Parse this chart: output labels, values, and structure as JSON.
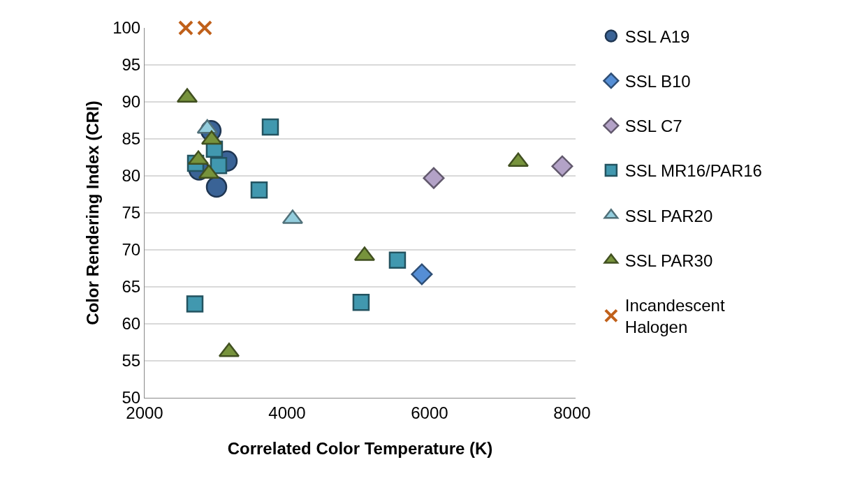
{
  "chart_data": {
    "type": "scatter",
    "xlabel": "Correlated Color Temperature (K)",
    "ylabel": "Color Rendering Index (CRI)",
    "xlim": [
      2000,
      8050
    ],
    "xticks": [
      2000,
      4000,
      6000,
      8000
    ],
    "ylim": [
      50,
      100
    ],
    "yticks": [
      50,
      55,
      60,
      65,
      70,
      75,
      80,
      85,
      90,
      95,
      100
    ],
    "grid": "y",
    "legend": "right",
    "series": [
      {
        "name": "SSL A19",
        "color": "#3a6396",
        "marker": "circle",
        "x": [
          2931,
          2765,
          3010,
          3157
        ],
        "values": [
          86.1,
          80.8,
          78.5,
          82.0
        ]
      },
      {
        "name": "SSL B10",
        "color": "#558ed5",
        "marker": "diamond",
        "x": [
          5892
        ],
        "values": [
          66.7
        ]
      },
      {
        "name": "SSL C7",
        "color": "#b3a2c7",
        "marker": "diamond",
        "x": [
          6059,
          7863
        ],
        "values": [
          79.7,
          81.3
        ]
      },
      {
        "name": "SSL MR16/PAR16",
        "color": "#4198af",
        "marker": "square",
        "x": [
          2980,
          2716,
          3039,
          3765,
          3608,
          2706,
          5549,
          5039
        ],
        "values": [
          83.6,
          81.7,
          81.4,
          86.6,
          78.1,
          62.7,
          68.6,
          62.9
        ]
      },
      {
        "name": "SSL PAR20",
        "color": "#93cddd",
        "marker": "triangle",
        "x": [
          2880,
          4078
        ],
        "values": [
          86.4,
          74.2
        ]
      },
      {
        "name": "SSL PAR30",
        "color": "#77933c",
        "marker": "triangle",
        "x": [
          2598,
          2941,
          2755,
          2902,
          3186,
          5088,
          7245
        ],
        "values": [
          90.6,
          84.9,
          82.2,
          80.3,
          56.2,
          69.2,
          81.9
        ]
      },
      {
        "name": "Incandescent Halogen",
        "color": "#c0601a",
        "marker": "cross",
        "x": [
          2578,
          2843
        ],
        "values": [
          100,
          100
        ]
      }
    ]
  }
}
